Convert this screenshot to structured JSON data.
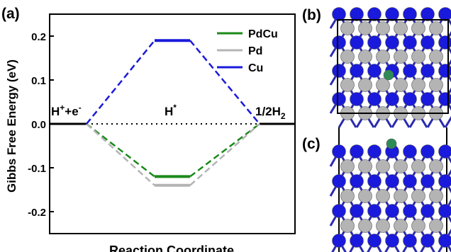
{
  "panels": {
    "a": "(a)",
    "b": "(b)",
    "c": "(c)"
  },
  "colors": {
    "PdCu": "#1a8a1a",
    "Pd": "#b4b4b4",
    "Cu": "#1a1adc",
    "atom_green": "#2e8b57",
    "axis": "#000000"
  },
  "chart_data": {
    "type": "line",
    "ylabel": "Gibbs Free Energy (eV)",
    "xlabel": "Reaction Coordinate",
    "ylim": [
      -0.25,
      0.25
    ],
    "yticks": [
      "0.2",
      "0.1",
      "0.0",
      "-0.1",
      "-0.2"
    ],
    "ytick_values": [
      0.2,
      0.1,
      0.0,
      -0.1,
      -0.2
    ],
    "states": [
      {
        "base": "H",
        "sup": "+",
        "rest": "+e",
        "sup2": "-"
      },
      {
        "base": "H",
        "sup": "*",
        "rest": "",
        "sup2": ""
      },
      {
        "base": "1/2H",
        "sub": "2"
      }
    ],
    "x_positions": [
      0,
      1,
      2
    ],
    "series": [
      {
        "name": "PdCu",
        "values": [
          0.0,
          -0.12,
          0.0
        ]
      },
      {
        "name": "Pd",
        "values": [
          0.0,
          -0.14,
          0.0
        ]
      },
      {
        "name": "Cu",
        "values": [
          0.0,
          0.19,
          0.0
        ]
      }
    ],
    "legend": "top-right",
    "grid": false
  }
}
